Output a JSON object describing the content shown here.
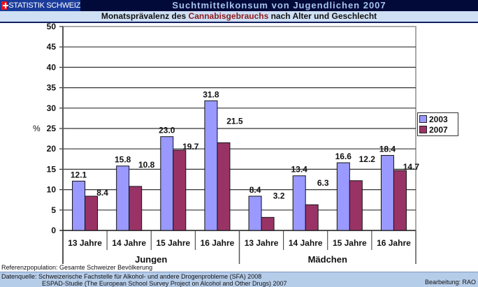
{
  "header": {
    "logo_text": "STATISTIK SCHWEIZ",
    "title": "Suchtmittelkonsum von Jugendlichen 2007",
    "subtitle_pre": "Monatsprävalenz des ",
    "subtitle_highlight": "Cannabisgebrauchs",
    "subtitle_post": " nach Alter und Geschlecht"
  },
  "colors": {
    "series_2003": "#9999ff",
    "series_2007": "#993366",
    "header_bg": "#020a3a",
    "subheader_bg": "#cfe0f5",
    "footer_bg": "#b6cdea"
  },
  "chart_data": {
    "type": "bar",
    "title": "Monatsprävalenz des Cannabisgebrauchs nach Alter und Geschlecht",
    "ylabel": "%",
    "xlabel": "",
    "ylim": [
      0,
      50
    ],
    "yticks": [
      "0",
      "5",
      "10",
      "15",
      "20",
      "25",
      "30",
      "35",
      "40",
      "45",
      "50"
    ],
    "ytick_values": [
      0,
      5,
      10,
      15,
      20,
      25,
      30,
      35,
      40,
      45,
      50
    ],
    "grid": true,
    "legend_position": "right",
    "categories": [
      "13 Jahre",
      "14 Jahre",
      "15 Jahre",
      "16 Jahre",
      "13 Jahre",
      "14 Jahre",
      "15 Jahre",
      "16 Jahre"
    ],
    "groups": [
      {
        "label": "Jungen",
        "span": 4
      },
      {
        "label": "Mädchen",
        "span": 4
      }
    ],
    "series": [
      {
        "name": "2003",
        "values": [
          12.1,
          15.8,
          23.0,
          31.8,
          8.4,
          13.4,
          16.6,
          18.4
        ],
        "labels": [
          "12.1",
          "15.8",
          "23.0",
          "31.8",
          "8.4",
          "13.4",
          "16.6",
          "18.4"
        ]
      },
      {
        "name": "2007",
        "values": [
          8.4,
          10.8,
          19.7,
          21.5,
          3.2,
          6.3,
          12.2,
          14.7
        ],
        "labels": [
          "8.4",
          "10.8",
          "19.7",
          "21.5",
          "3.2",
          "6.3",
          "12.2",
          "14.7"
        ]
      }
    ]
  },
  "legend": {
    "items": [
      "2003",
      "2007"
    ]
  },
  "footer": {
    "reference": "Referenzpopulation: Gesamte Schweizer Bevölkerung",
    "source_line1": "Datenquelle: Schweizerische Fachstelle für Alkohol- und andere Drogenprobleme (SFA) 2008",
    "source_line2": "ESPAD-Studie (The European School Survey Project on Alcohol and Other Drugs) 2007",
    "editor": "Bearbeitung: RAO"
  }
}
